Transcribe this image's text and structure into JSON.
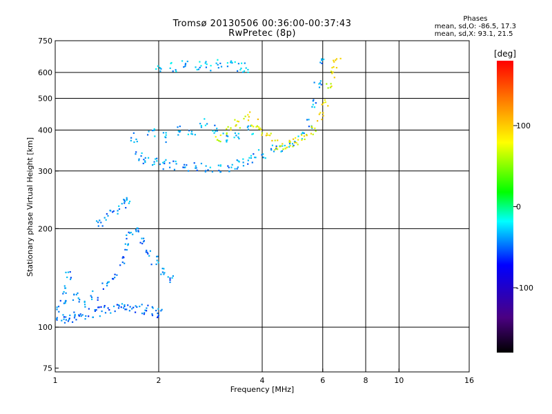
{
  "title": "Tromsø 20130506 00:36:00-00:37:43",
  "subtitle": "RwPretec (8p)",
  "stats": {
    "heading": "Phases",
    "line_o": "mean, sd,O: -86.5, 17.3",
    "line_x": "mean, sd,X:  93.1, 21.5"
  },
  "chart_data": {
    "type": "scatter",
    "x_scale": "log",
    "y_scale": "log",
    "xlabel": "Frequency [MHz]",
    "ylabel": "Stationary phase Virtual Height [km]",
    "xlim": [
      1,
      16
    ],
    "ylim": [
      73,
      750
    ],
    "x_ticks": [
      1,
      2,
      4,
      6,
      8,
      10,
      16
    ],
    "x_gridlines": [
      2,
      4,
      6,
      8,
      10
    ],
    "y_ticks": [
      75,
      100,
      200,
      300,
      400,
      500,
      600,
      750
    ],
    "y_gridlines": [
      100,
      200,
      300,
      400,
      500,
      600
    ],
    "grid": true,
    "colorbar": {
      "label": "[deg]",
      "range": [
        -180,
        180
      ],
      "ticks": [
        100,
        0,
        -100
      ]
    },
    "traces": [
      {
        "name": "",
        "phase": -105,
        "points": [
          [
            1.0,
            105
          ],
          [
            1.05,
            106
          ],
          [
            1.1,
            107
          ],
          [
            1.15,
            108
          ],
          [
            1.2,
            109
          ],
          [
            1.28,
            110
          ],
          [
            1.35,
            112
          ],
          [
            1.42,
            113
          ],
          [
            1.5,
            114
          ],
          [
            1.58,
            114
          ],
          [
            1.65,
            115
          ],
          [
            1.75,
            114
          ],
          [
            1.85,
            113
          ],
          [
            1.95,
            112
          ],
          [
            2.0,
            111
          ]
        ]
      },
      {
        "name": "",
        "phase": -100,
        "points": [
          [
            1.0,
            112
          ],
          [
            1.05,
            118
          ],
          [
            1.08,
            130
          ],
          [
            1.1,
            145
          ],
          [
            1.15,
            125
          ],
          [
            1.2,
            118
          ],
          [
            1.3,
            125
          ],
          [
            1.4,
            135
          ],
          [
            1.5,
            145
          ],
          [
            1.55,
            160
          ],
          [
            1.6,
            175
          ],
          [
            1.65,
            190
          ],
          [
            1.72,
            200
          ],
          [
            1.8,
            185
          ],
          [
            1.88,
            170
          ],
          [
            1.95,
            160
          ],
          [
            2.05,
            150
          ],
          [
            2.15,
            140
          ]
        ]
      },
      {
        "name": "",
        "phase": -95,
        "points": [
          [
            1.35,
            210
          ],
          [
            1.42,
            220
          ],
          [
            1.5,
            230
          ],
          [
            1.58,
            240
          ],
          [
            1.62,
            245
          ]
        ]
      },
      {
        "name": "",
        "phase": -90,
        "points": [
          [
            1.75,
            335
          ],
          [
            1.85,
            325
          ],
          [
            1.95,
            318
          ],
          [
            2.05,
            315
          ],
          [
            2.2,
            312
          ],
          [
            2.4,
            310
          ],
          [
            2.6,
            308
          ],
          [
            2.8,
            306
          ],
          [
            3.0,
            306
          ],
          [
            3.2,
            310
          ],
          [
            3.4,
            315
          ],
          [
            3.6,
            322
          ],
          [
            3.8,
            330
          ],
          [
            4.0,
            340
          ],
          [
            4.3,
            348
          ],
          [
            4.6,
            355
          ],
          [
            4.9,
            365
          ],
          [
            5.2,
            385
          ],
          [
            5.5,
            420
          ],
          [
            5.7,
            480
          ],
          [
            5.8,
            560
          ],
          [
            5.9,
            640
          ]
        ]
      },
      {
        "name": "",
        "phase": -85,
        "points": [
          [
            1.7,
            380
          ],
          [
            1.9,
            390
          ],
          [
            2.1,
            380
          ],
          [
            2.3,
            400
          ],
          [
            2.5,
            390
          ],
          [
            2.7,
            420
          ],
          [
            2.9,
            400
          ],
          [
            3.1,
            380
          ],
          [
            3.4,
            390
          ],
          [
            3.7,
            400
          ]
        ]
      },
      {
        "name": "",
        "phase": -80,
        "points": [
          [
            2.0,
            615
          ],
          [
            2.2,
            625
          ],
          [
            2.4,
            630
          ],
          [
            2.6,
            625
          ],
          [
            2.8,
            630
          ],
          [
            3.0,
            635
          ],
          [
            3.2,
            630
          ],
          [
            3.4,
            625
          ],
          [
            3.6,
            620
          ]
        ]
      },
      {
        "name": "",
        "phase": 95,
        "points": [
          [
            3.0,
            380
          ],
          [
            3.2,
            400
          ],
          [
            3.4,
            420
          ],
          [
            3.6,
            440
          ],
          [
            3.8,
            420
          ],
          [
            4.0,
            400
          ],
          [
            4.2,
            380
          ],
          [
            4.4,
            360
          ],
          [
            4.6,
            355
          ],
          [
            4.8,
            360
          ],
          [
            5.0,
            370
          ],
          [
            5.3,
            380
          ],
          [
            5.6,
            400
          ],
          [
            5.9,
            440
          ],
          [
            6.1,
            480
          ],
          [
            6.3,
            540
          ],
          [
            6.5,
            600
          ],
          [
            6.6,
            640
          ]
        ]
      }
    ]
  }
}
